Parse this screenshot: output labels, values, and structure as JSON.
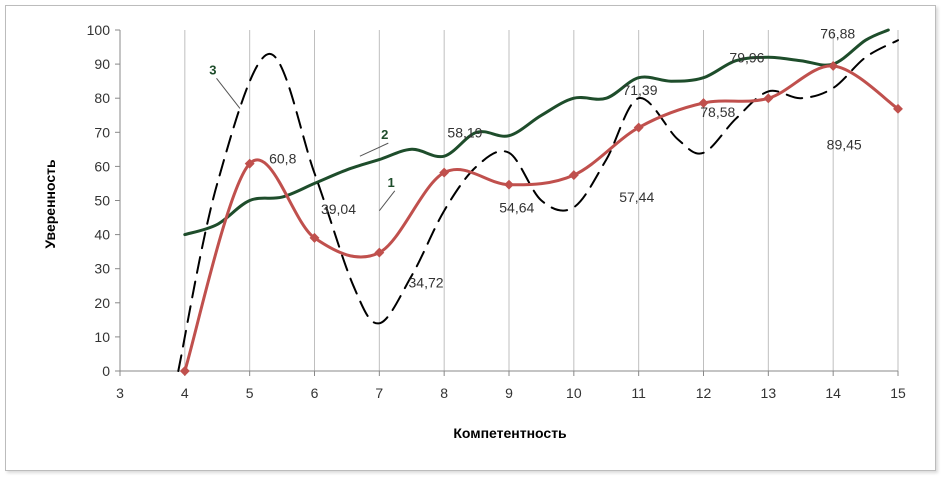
{
  "chart_data": {
    "type": "line",
    "xlabel": "Компетентность",
    "ylabel": "Уверенность",
    "xlim": [
      3,
      15
    ],
    "ylim": [
      0,
      100
    ],
    "x_ticks": [
      3,
      4,
      5,
      6,
      7,
      8,
      9,
      10,
      11,
      12,
      13,
      14,
      15
    ],
    "y_ticks": [
      0,
      10,
      20,
      30,
      40,
      50,
      60,
      70,
      80,
      90,
      100
    ],
    "grid": "vertical",
    "colors": {
      "series1": "#c0504d",
      "series2": "#1e4d2b",
      "series3": "#000000"
    },
    "series": [
      {
        "name": "1",
        "style": "solid-markers",
        "x": [
          4,
          5,
          6,
          7,
          8,
          9,
          10,
          11,
          12,
          13,
          14,
          15
        ],
        "values": [
          0,
          60.8,
          39.04,
          34.72,
          58.19,
          54.64,
          57.44,
          71.39,
          78.58,
          79.96,
          89.45,
          76.88
        ]
      },
      {
        "name": "2",
        "style": "solid",
        "x": [
          4,
          4.5,
          5,
          5.5,
          6,
          6.5,
          7,
          7.5,
          8,
          8.5,
          9,
          9.5,
          10,
          10.5,
          11,
          11.5,
          12,
          12.5,
          13,
          13.5,
          14,
          14.5,
          14.85
        ],
        "values": [
          40,
          43,
          50,
          51,
          55,
          59,
          62,
          65,
          63,
          70,
          69,
          75,
          80,
          80,
          86,
          85,
          86,
          91,
          92,
          91,
          90,
          97,
          100
        ]
      },
      {
        "name": "3",
        "style": "dashed",
        "x": [
          3.9,
          4.5,
          5.3,
          6,
          6.6,
          7,
          7.5,
          8,
          8.5,
          9,
          9.5,
          10,
          10.5,
          11,
          11.6,
          12,
          12.5,
          13,
          13.5,
          14,
          14.5,
          15
        ],
        "values": [
          0,
          55,
          93,
          58,
          25,
          14,
          28,
          47,
          60,
          64,
          50,
          48,
          62,
          80,
          68,
          64,
          74,
          82,
          80,
          83,
          92,
          97
        ]
      }
    ],
    "data_labels": [
      {
        "text": "60,8",
        "x": 5.3,
        "y": 60.8
      },
      {
        "text": "39,04",
        "x": 6.1,
        "y": 46
      },
      {
        "text": "34,72",
        "x": 7.45,
        "y": 24.5
      },
      {
        "text": "58,19",
        "x": 8.05,
        "y": 68.5
      },
      {
        "text": "54,64",
        "x": 8.85,
        "y": 46.5
      },
      {
        "text": "57,44",
        "x": 10.7,
        "y": 49.5
      },
      {
        "text": "71,39",
        "x": 10.75,
        "y": 81
      },
      {
        "text": "78,58",
        "x": 11.95,
        "y": 74.5
      },
      {
        "text": "79,96",
        "x": 12.4,
        "y": 90.5
      },
      {
        "text": "89,45",
        "x": 13.9,
        "y": 65
      },
      {
        "text": "76,88",
        "x": 13.8,
        "y": 97.5
      }
    ],
    "series_markers": [
      {
        "text": "1",
        "x": 7.3,
        "y": 54,
        "color": "#1e4d2b",
        "line_to": [
          7.0,
          47
        ]
      },
      {
        "text": "2",
        "x": 7.2,
        "y": 68,
        "color": "#1e4d2b",
        "line_to": [
          6.7,
          63
        ]
      },
      {
        "text": "3",
        "x": 4.55,
        "y": 87,
        "color": "#1e4d2b",
        "line_to": [
          4.85,
          77
        ]
      }
    ]
  }
}
